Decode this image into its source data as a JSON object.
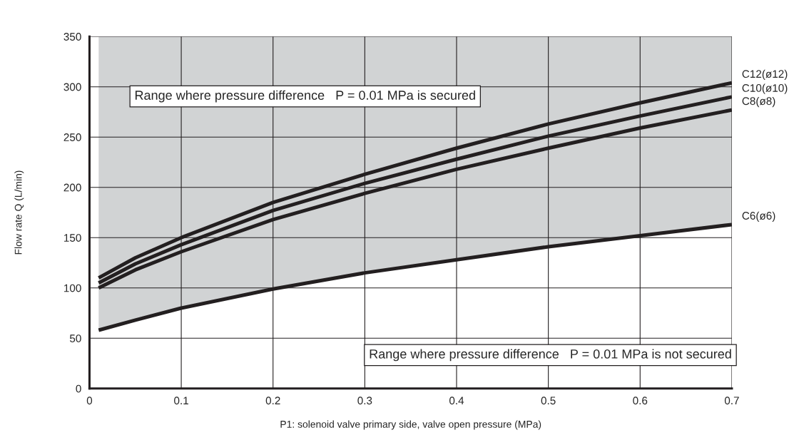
{
  "chart_data": {
    "type": "line",
    "xlabel": "P1: solenoid valve primary side, valve open pressure (MPa)",
    "ylabel": "Flow rate Q (L/min)",
    "xlim": [
      0,
      0.7
    ],
    "ylim": [
      0,
      350
    ],
    "xticks": [
      0,
      0.1,
      0.2,
      0.3,
      0.4,
      0.5,
      0.6,
      0.7
    ],
    "yticks": [
      0,
      50,
      100,
      150,
      200,
      250,
      300,
      350
    ],
    "grid": true,
    "legend": false,
    "marker": "none",
    "line_style": "solid",
    "x": [
      0.01,
      0.05,
      0.1,
      0.2,
      0.3,
      0.4,
      0.5,
      0.6,
      0.7
    ],
    "series": [
      {
        "name": "C12(ø12)",
        "color": "#231f20",
        "values": [
          110,
          130,
          150,
          185,
          213,
          239,
          263,
          284,
          304
        ]
      },
      {
        "name": "C10(ø10)",
        "color": "#231f20",
        "values": [
          105,
          124,
          143,
          177,
          204,
          228,
          251,
          271,
          290
        ]
      },
      {
        "name": "C8(ø8)",
        "color": "#231f20",
        "values": [
          100,
          118,
          136,
          168,
          194,
          218,
          239,
          259,
          277
        ]
      },
      {
        "name": "C6(ø6)",
        "color": "#231f20",
        "values": [
          58,
          68,
          80,
          99,
          115,
          128,
          141,
          152,
          163
        ],
        "lower": [
          58,
          68,
          80,
          99,
          115,
          128,
          141,
          152,
          163
        ],
        "upper": [
          350,
          350,
          350,
          350,
          350,
          350,
          350,
          350,
          350
        ]
      }
    ],
    "annotations": [
      "Range where pressure difference   P = 0.01 MPa is secured",
      "Range where pressure difference   P = 0.01 MPa is not secured"
    ]
  }
}
